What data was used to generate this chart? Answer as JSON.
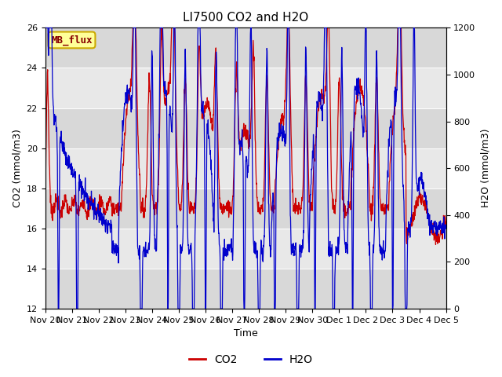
{
  "title": "LI7500 CO2 and H2O",
  "xlabel": "Time",
  "ylabel_left": "CO2 (mmol/m3)",
  "ylabel_right": "H2O (mmol/m3)",
  "ylim_left": [
    12,
    26
  ],
  "ylim_right": [
    0,
    1200
  ],
  "yticks_left": [
    12,
    14,
    16,
    18,
    20,
    22,
    24,
    26
  ],
  "yticks_right": [
    0,
    200,
    400,
    600,
    800,
    1000,
    1200
  ],
  "xtick_labels": [
    "Nov 20",
    "Nov 21",
    "Nov 22",
    "Nov 23",
    "Nov 24",
    "Nov 25",
    "Nov 26",
    "Nov 27",
    "Nov 28",
    "Nov 29",
    "Nov 30",
    "Dec 1",
    "Dec 2",
    "Dec 3",
    "Dec 4",
    "Dec 5"
  ],
  "annotation_text": "MB_flux",
  "annotation_bg": "#FFFF99",
  "annotation_border": "#CCAA00",
  "co2_color": "#CC0000",
  "h2o_color": "#0000CC",
  "plot_bg": "#E8E8E8",
  "band_color_dark": "#D8D8D8",
  "band_color_light": "#E8E8E8",
  "legend_co2": "CO2",
  "legend_h2o": "H2O",
  "title_fontsize": 11,
  "axis_label_fontsize": 9,
  "tick_fontsize": 8
}
